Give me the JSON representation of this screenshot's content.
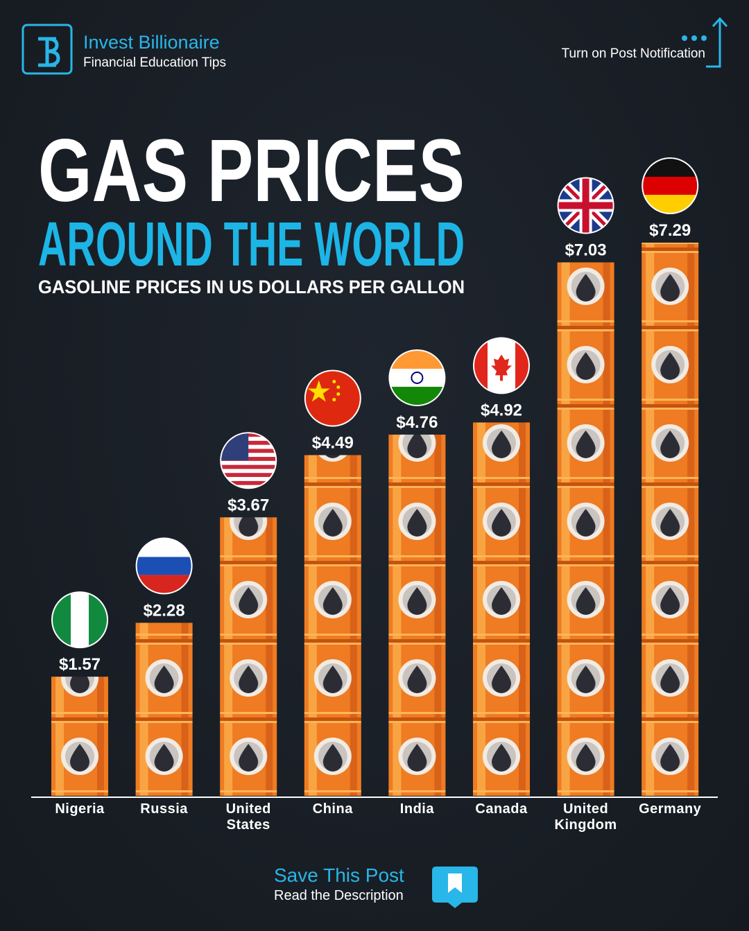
{
  "header": {
    "brand": "Invest Billionaire",
    "tagline": "Financial Education Tips",
    "notification": "Turn on Post Notification"
  },
  "chart_data": {
    "type": "bar",
    "title": "GAS PRICES",
    "subtitle": "AROUND THE WORLD",
    "description": "GASOLINE PRICES IN US DOLLARS PER GALLON",
    "categories": [
      "Nigeria",
      "Russia",
      "United States",
      "China",
      "India",
      "Canada",
      "United Kingdom",
      "Germany"
    ],
    "values": [
      1.57,
      2.28,
      3.67,
      4.49,
      4.76,
      4.92,
      7.03,
      7.29
    ],
    "value_labels": [
      "$1.57",
      "$2.28",
      "$3.67",
      "$4.49",
      "$4.76",
      "$4.92",
      "$7.03",
      "$7.29"
    ],
    "color": "#ef7b22"
  },
  "footer": {
    "cta": "Save This Post",
    "note": "Read the Description"
  }
}
